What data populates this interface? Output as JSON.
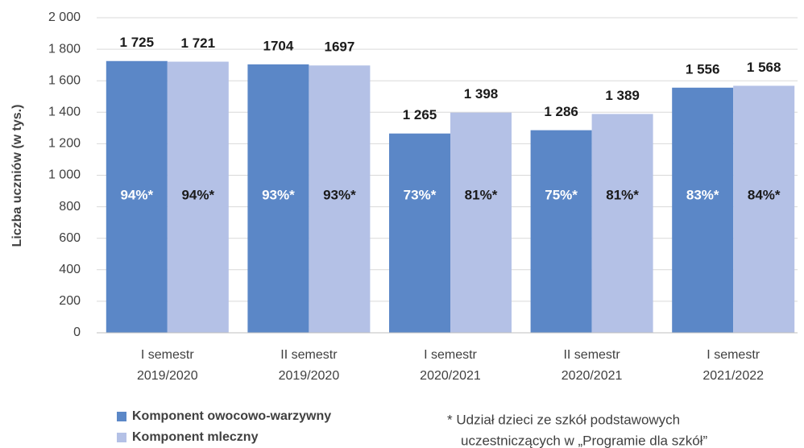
{
  "chart_data": {
    "type": "bar",
    "y_label": "Liczba uczniów (w tys.)",
    "categories": [
      [
        "I semestr",
        "2019/2020"
      ],
      [
        "II semestr",
        "2019/2020"
      ],
      [
        "I semestr",
        "2020/2021"
      ],
      [
        "II semestr",
        "2020/2021"
      ],
      [
        "I semestr",
        "2021/2022"
      ]
    ],
    "series": [
      {
        "name": "Komponent owocowo-warzywny",
        "color": "#5b87c7",
        "values": [
          1725,
          1704,
          1265,
          1286,
          1556
        ],
        "value_labels": [
          "1 725",
          "1704",
          "1 265",
          "1 286",
          "1 556"
        ],
        "share_labels": [
          "94%*",
          "93%*",
          "73%*",
          "75%*",
          "83%*"
        ]
      },
      {
        "name": "Komponent mleczny",
        "color": "#b4c1e6",
        "values": [
          1721,
          1697,
          1398,
          1389,
          1568
        ],
        "value_labels": [
          "1 721",
          "1697",
          "1 398",
          "1 389",
          "1 568"
        ],
        "share_labels": [
          "94%*",
          "93%*",
          "81%*",
          "81%*",
          "84%*"
        ]
      }
    ],
    "ylim": [
      0,
      2000
    ],
    "yticks": [
      0,
      200,
      400,
      600,
      800,
      {
        "value": 1000,
        "label": "1 000"
      },
      {
        "value": 1200,
        "label": "1 200"
      },
      {
        "value": 1400,
        "label": "1 400"
      },
      {
        "value": 1600,
        "label": "1 600"
      },
      {
        "value": 1800,
        "label": "1 800"
      },
      {
        "value": 2000,
        "label": "2 000"
      }
    ],
    "grid": true,
    "footnote": [
      "* Udział dzieci ze szkół podstawowych",
      "uczestniczących w „Programie dla szkół”"
    ]
  }
}
